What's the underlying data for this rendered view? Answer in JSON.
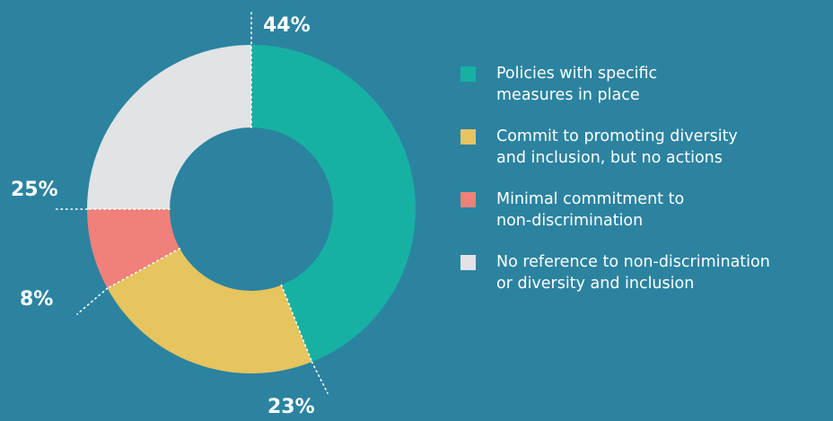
{
  "chart_data": {
    "type": "pie",
    "subtype": "donut",
    "slices": [
      {
        "label": "Policies with specific measures in place",
        "value": 44,
        "display": "44%",
        "color": "#17b1a4"
      },
      {
        "label": "Commit to promoting diversity and inclusion, but no actions",
        "value": 23,
        "display": "23%",
        "color": "#e6c45e"
      },
      {
        "label": "Minimal commitment to non-discrimination",
        "value": 8,
        "display": "8%",
        "color": "#f08079"
      },
      {
        "label": "No reference to non-discrimination or diversity and inclusion",
        "value": 25,
        "display": "25%",
        "color": "#e1e3e5"
      }
    ],
    "legend_position": "right"
  },
  "legend": [
    {
      "line1": "Policies with specific",
      "line2": "measures in place"
    },
    {
      "line1": "Commit to promoting diversity",
      "line2": "and inclusion, but no actions"
    },
    {
      "line1": "Minimal commitment to",
      "line2": "non-discrimination"
    },
    {
      "line1": "No reference to non-discrimination",
      "line2": "or diversity and inclusion"
    }
  ],
  "colors": {
    "background": "#2b83a0",
    "separator": "#ffffff"
  }
}
